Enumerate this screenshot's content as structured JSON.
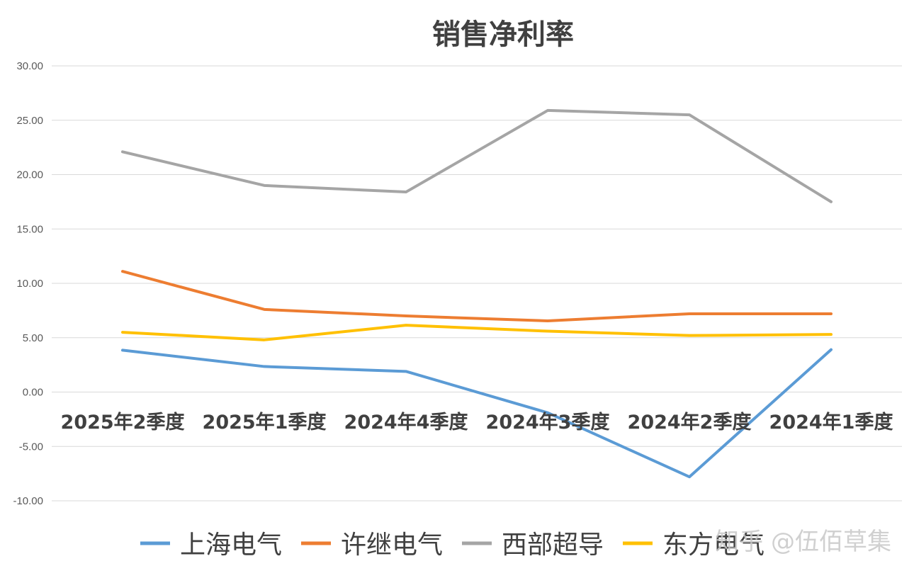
{
  "chart_data": {
    "type": "line",
    "title": "销售净利率",
    "categories": [
      "2025年2季度",
      "2025年1季度",
      "2024年4季度",
      "2024年3季度",
      "2024年2季度",
      "2024年1季度"
    ],
    "ylim": [
      -10,
      30
    ],
    "yticks": [
      "-10.00",
      "-5.00",
      "0.00",
      "5.00",
      "10.00",
      "15.00",
      "20.00",
      "25.00",
      "30.00"
    ],
    "grid": true,
    "legend_position": "bottom",
    "series": [
      {
        "name": "上海电气",
        "color": "#5b9bd5",
        "values": [
          3.85,
          2.35,
          1.9,
          -1.9,
          -7.8,
          3.9
        ]
      },
      {
        "name": "许继电气",
        "color": "#ed7d31",
        "values": [
          11.1,
          7.6,
          7.0,
          6.55,
          7.2,
          7.2
        ]
      },
      {
        "name": "西部超导",
        "color": "#a5a5a5",
        "values": [
          22.1,
          19.0,
          18.4,
          25.9,
          25.5,
          17.5
        ]
      },
      {
        "name": "东方电气",
        "color": "#ffc000",
        "values": [
          5.5,
          4.8,
          6.15,
          5.6,
          5.2,
          5.3
        ]
      }
    ]
  },
  "watermark": "知乎 @伍佰草集"
}
